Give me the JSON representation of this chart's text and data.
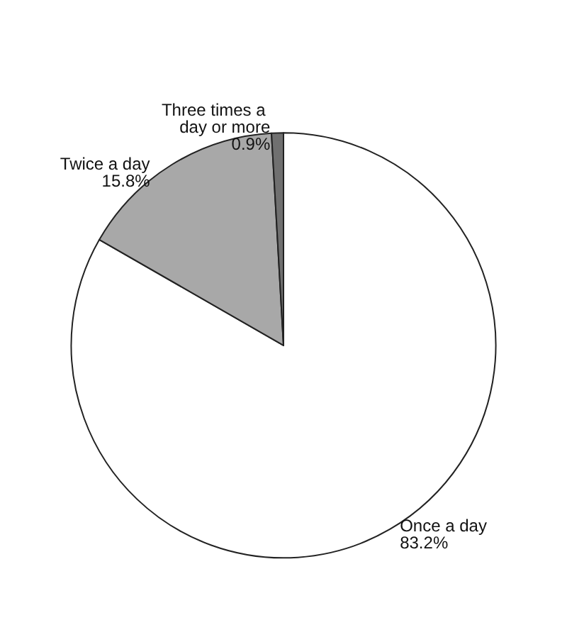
{
  "chart_data": {
    "type": "pie",
    "categories": [
      "Once a day",
      "Twice a day",
      "Three times a day or more"
    ],
    "values": [
      83.2,
      15.8,
      0.9
    ],
    "value_labels": [
      "83.2%",
      "15.8%",
      "0.9%"
    ],
    "colors": [
      "#ffffff",
      "#a8a8a8",
      "#707070"
    ],
    "legend": false
  }
}
